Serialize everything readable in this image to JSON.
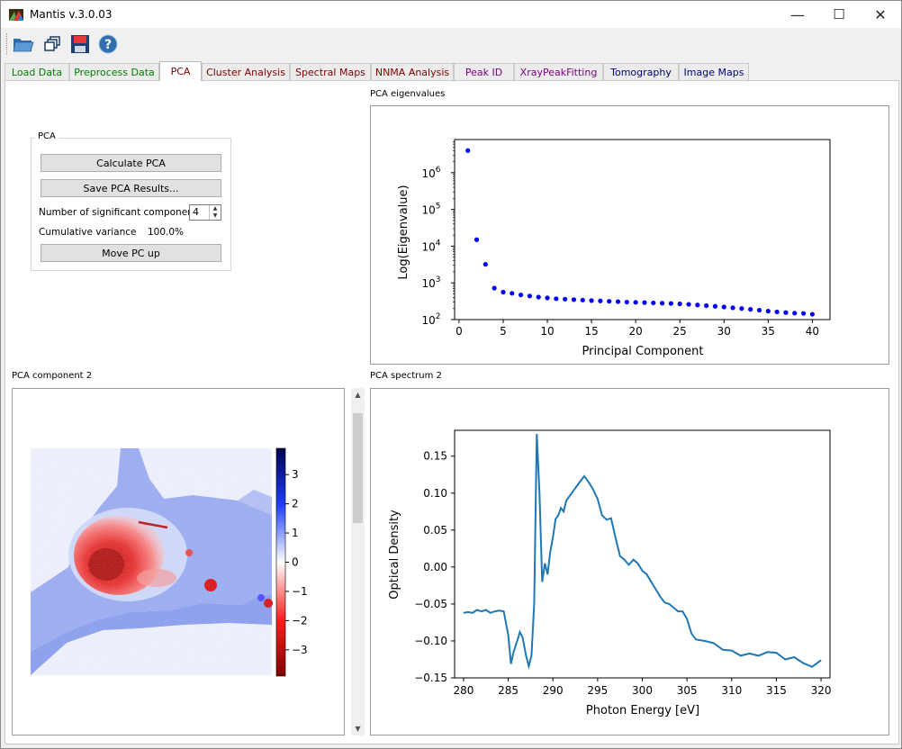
{
  "window": {
    "title": "Mantis v.3.0.03",
    "minimize": "—",
    "maximize": "☐",
    "close": "✕"
  },
  "toolbar": {
    "buttons": [
      "open-folder",
      "open-multiple",
      "save",
      "help"
    ]
  },
  "tabs": [
    {
      "label": "Load Data",
      "color": "#008000"
    },
    {
      "label": "Preprocess Data",
      "color": "#008000"
    },
    {
      "label": "PCA",
      "color": "#800000"
    },
    {
      "label": "Cluster Analysis",
      "color": "#800000"
    },
    {
      "label": "Spectral Maps",
      "color": "#800000"
    },
    {
      "label": "NNMA Analysis",
      "color": "#800000"
    },
    {
      "label": "Peak ID",
      "color": "#800080"
    },
    {
      "label": "XrayPeakFitting",
      "color": "#800080"
    },
    {
      "label": "Tomography",
      "color": "#000080"
    },
    {
      "label": "Image Maps",
      "color": "#000080"
    }
  ],
  "pca_group": {
    "title": "PCA",
    "calculate_label": "Calculate PCA",
    "save_label": "Save PCA Results...",
    "num_components_label": "Number of significant components",
    "num_components_value": "4",
    "cumvar_label": "Cumulative variance",
    "cumvar_value": "100.0%",
    "move_label": "Move PC up"
  },
  "panels": {
    "eigen_title": "PCA eigenvalues",
    "component_title": "PCA component 2",
    "spectrum_title": "PCA spectrum 2"
  },
  "chart_data": [
    {
      "type": "scatter",
      "title": "PCA eigenvalues",
      "xlabel": "Principal Component",
      "ylabel": "Log(Eigenvalue)",
      "yscale": "log",
      "xlim": [
        -0.5,
        42
      ],
      "ylim": [
        100,
        8000000
      ],
      "xticks": [
        0,
        5,
        10,
        15,
        20,
        25,
        30,
        35,
        40
      ],
      "color": "#0000ff",
      "x": [
        1,
        2,
        3,
        4,
        5,
        6,
        7,
        8,
        9,
        10,
        11,
        12,
        13,
        14,
        15,
        16,
        17,
        18,
        19,
        20,
        21,
        22,
        23,
        24,
        25,
        26,
        27,
        28,
        29,
        30,
        31,
        32,
        33,
        34,
        35,
        36,
        37,
        38,
        39,
        40
      ],
      "y": [
        4000000,
        15000,
        3200,
        720,
        560,
        520,
        470,
        440,
        410,
        390,
        370,
        360,
        350,
        340,
        330,
        322,
        315,
        308,
        300,
        295,
        290,
        285,
        280,
        275,
        268,
        260,
        250,
        240,
        230,
        220,
        210,
        200,
        190,
        180,
        170,
        162,
        155,
        150,
        147,
        140
      ]
    },
    {
      "type": "line",
      "title": "PCA spectrum 2",
      "xlabel": "Photon Energy [eV]",
      "ylabel": "Optical Density",
      "xlim": [
        279,
        321
      ],
      "ylim": [
        -0.15,
        0.185
      ],
      "xticks": [
        280,
        285,
        290,
        295,
        300,
        305,
        310,
        315,
        320
      ],
      "yticks": [
        -0.15,
        -0.1,
        -0.05,
        0.0,
        0.05,
        0.1,
        0.15
      ],
      "color": "#1f77b4",
      "x": [
        280,
        280.5,
        281,
        281.5,
        282,
        282.5,
        283,
        283.5,
        284,
        284.5,
        285,
        285.3,
        285.6,
        286,
        286.3,
        286.6,
        287,
        287.3,
        287.6,
        287.9,
        288.2,
        288.5,
        288.8,
        289.1,
        289.4,
        289.7,
        290,
        290.3,
        290.6,
        290.9,
        291.2,
        291.5,
        291.8,
        292.1,
        292.4,
        292.7,
        293,
        293.5,
        294,
        294.5,
        295,
        295.5,
        296,
        296.5,
        297,
        297.5,
        298,
        298.5,
        299,
        299.5,
        300,
        300.5,
        301,
        301.5,
        302,
        302.5,
        303,
        303.5,
        304,
        304.5,
        305,
        305.5,
        306,
        307,
        308,
        309,
        310,
        311,
        312,
        313,
        314,
        315,
        316,
        317,
        318,
        319,
        320
      ],
      "y": [
        -0.062,
        -0.061,
        -0.062,
        -0.058,
        -0.06,
        -0.058,
        -0.062,
        -0.06,
        -0.059,
        -0.06,
        -0.092,
        -0.131,
        -0.115,
        -0.1,
        -0.088,
        -0.095,
        -0.12,
        -0.134,
        -0.12,
        -0.05,
        0.18,
        0.1,
        -0.02,
        0.005,
        -0.01,
        0.02,
        0.04,
        0.065,
        0.07,
        0.08,
        0.075,
        0.09,
        0.095,
        0.1,
        0.105,
        0.11,
        0.115,
        0.123,
        0.115,
        0.105,
        0.092,
        0.07,
        0.064,
        0.066,
        0.04,
        0.015,
        0.01,
        0.003,
        0.01,
        0.005,
        -0.005,
        -0.01,
        -0.02,
        -0.03,
        -0.04,
        -0.048,
        -0.05,
        -0.055,
        -0.06,
        -0.06,
        -0.07,
        -0.09,
        -0.098,
        -0.1,
        -0.103,
        -0.112,
        -0.113,
        -0.12,
        -0.117,
        -0.12,
        -0.115,
        -0.116,
        -0.125,
        -0.122,
        -0.13,
        -0.135,
        -0.126
      ]
    },
    {
      "type": "heatmap",
      "title": "PCA component 2",
      "colorbar_range": [
        -3.9,
        3.9
      ],
      "colorbar_ticks": [
        "3",
        "2",
        "1",
        "0",
        "−1",
        "−2",
        "−3"
      ],
      "colormap": "seismic"
    }
  ]
}
